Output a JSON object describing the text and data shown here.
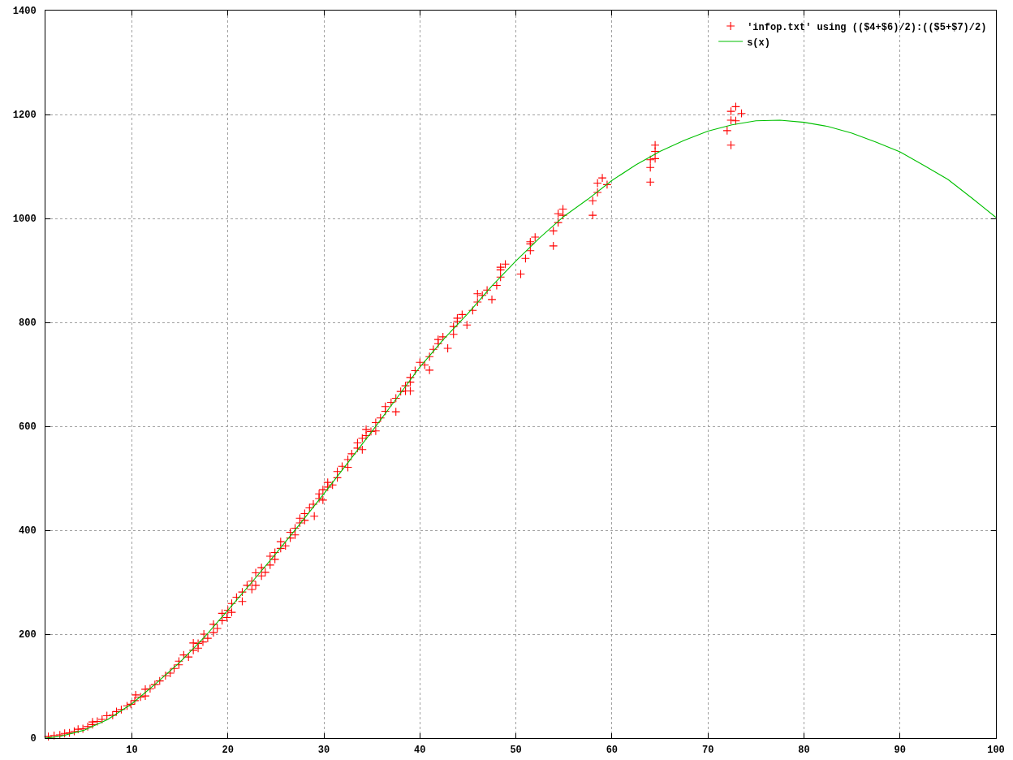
{
  "chart_data": {
    "type": "scatter",
    "xlim": [
      1,
      100
    ],
    "ylim": [
      0,
      1400
    ],
    "xticks": [
      10,
      20,
      30,
      40,
      50,
      60,
      70,
      80,
      90,
      100
    ],
    "yticks": [
      0,
      200,
      400,
      600,
      800,
      1000,
      1200,
      1400
    ],
    "grid": true,
    "legend": "top right",
    "marker": "cross",
    "series": [
      {
        "name": "'infop.txt' using (($4+$6)/2):(($5+$7)/2)",
        "color": "#ff0000",
        "x": [
          1.3,
          1.9,
          2.5,
          3.0,
          3.5,
          4.0,
          4.4,
          4.9,
          5.4,
          5.9,
          5.9,
          6.4,
          6.9,
          7.4,
          8.0,
          8.4,
          8.9,
          9.5,
          9.9,
          10.3,
          10.4,
          10.9,
          11.4,
          11.4,
          11.9,
          12.4,
          12.9,
          13.5,
          14.0,
          14.4,
          14.9,
          14.9,
          15.4,
          15.9,
          16.4,
          16.4,
          16.9,
          16.9,
          17.4,
          17.5,
          17.9,
          18.5,
          18.5,
          18.9,
          19.4,
          19.4,
          19.9,
          20.0,
          20.4,
          20.4,
          20.9,
          21.5,
          21.5,
          22.0,
          22.5,
          22.5,
          22.9,
          22.9,
          23.5,
          23.5,
          23.9,
          24.4,
          24.4,
          24.9,
          24.9,
          25.5,
          25.5,
          26.0,
          26.5,
          26.5,
          27.0,
          27.0,
          27.5,
          27.5,
          28.0,
          28.0,
          28.5,
          28.9,
          29.0,
          29.5,
          29.5,
          29.9,
          29.9,
          30.4,
          30.4,
          30.9,
          31.4,
          31.4,
          31.9,
          32.5,
          32.5,
          32.9,
          33.5,
          33.5,
          34.0,
          34.0,
          34.4,
          34.4,
          34.9,
          35.4,
          35.4,
          35.9,
          36.4,
          36.4,
          37.0,
          37.5,
          37.5,
          38.0,
          38.5,
          38.5,
          39.0,
          39.0,
          39.0,
          39.5,
          40.0,
          40.5,
          41.0,
          41.0,
          41.4,
          41.9,
          41.9,
          42.4,
          42.9,
          43.5,
          43.5,
          43.9,
          43.9,
          44.4,
          44.9,
          45.5,
          46.0,
          46.0,
          46.5,
          47.0,
          47.5,
          48.0,
          48.4,
          48.4,
          48.4,
          48.9,
          50.5,
          51.0,
          51.5,
          51.5,
          51.5,
          52.0,
          53.9,
          53.9,
          54.4,
          54.4,
          54.9,
          54.9,
          58.0,
          58.0,
          58.5,
          58.5,
          59.0,
          59.5,
          64.0,
          64.0,
          64.0,
          64.5,
          64.5,
          64.5,
          72.0,
          72.4,
          72.4,
          72.4,
          72.9,
          72.9,
          73.5
        ],
        "values": [
          3,
          5,
          6,
          9,
          10,
          13,
          17,
          18,
          22,
          26,
          31,
          32,
          36,
          43,
          44,
          51,
          55,
          62,
          65,
          72,
          83,
          79,
          81,
          94,
          95,
          103,
          110,
          120,
          125,
          134,
          141,
          148,
          160,
          156,
          169,
          183,
          173,
          182,
          185,
          200,
          192,
          203,
          219,
          211,
          226,
          240,
          232,
          246,
          259,
          242,
          271,
          281,
          263,
          294,
          302,
          286,
          318,
          294,
          328,
          312,
          319,
          333,
          350,
          344,
          357,
          378,
          365,
          370,
          385,
          396,
          404,
          391,
          414,
          423,
          432,
          419,
          443,
          450,
          427,
          461,
          470,
          458,
          478,
          492,
          483,
          487,
          501,
          513,
          523,
          521,
          536,
          547,
          558,
          568,
          555,
          577,
          582,
          594,
          590,
          591,
          607,
          616,
          629,
          638,
          646,
          654,
          628,
          667,
          678,
          668,
          694,
          668,
          685,
          707,
          723,
          718,
          734,
          708,
          748,
          767,
          759,
          772,
          750,
          792,
          777,
          808,
          802,
          815,
          795,
          823,
          839,
          855,
          852,
          862,
          844,
          871,
          887,
          901,
          906,
          912,
          893,
          923,
          938,
          951,
          955,
          964,
          947,
          976,
          992,
          1009,
          1006,
          1018,
          1006,
          1034,
          1050,
          1068,
          1078,
          1065,
          1070,
          1098,
          1113,
          1115,
          1129,
          1141,
          1169,
          1141,
          1189,
          1206,
          1188,
          1215,
          1202
        ]
      },
      {
        "name": "s(x)",
        "type": "line",
        "color": "#00c000",
        "marker": "none",
        "line_style": "solid",
        "x": [
          1,
          2.5,
          5,
          7.5,
          10,
          12.5,
          15,
          17.5,
          20,
          22.5,
          25,
          27.5,
          30,
          32.5,
          35,
          37.5,
          40,
          42.5,
          45,
          47.5,
          50,
          52.5,
          55,
          57.5,
          60,
          62.5,
          65,
          67.5,
          70,
          72.5,
          75,
          77.5,
          80,
          82.5,
          85,
          87.5,
          90,
          92.5,
          95,
          97.5,
          100
        ],
        "values": [
          0,
          3,
          15,
          36,
          66,
          105,
          146,
          193,
          246,
          300,
          355,
          412,
          470,
          530,
          590,
          652,
          714,
          768,
          817,
          870,
          918,
          963,
          1004,
          1037,
          1073,
          1103,
          1129,
          1150,
          1168,
          1180,
          1188,
          1189,
          1185,
          1177,
          1164,
          1147,
          1128,
          1102,
          1075,
          1039,
          1002
        ]
      }
    ]
  }
}
